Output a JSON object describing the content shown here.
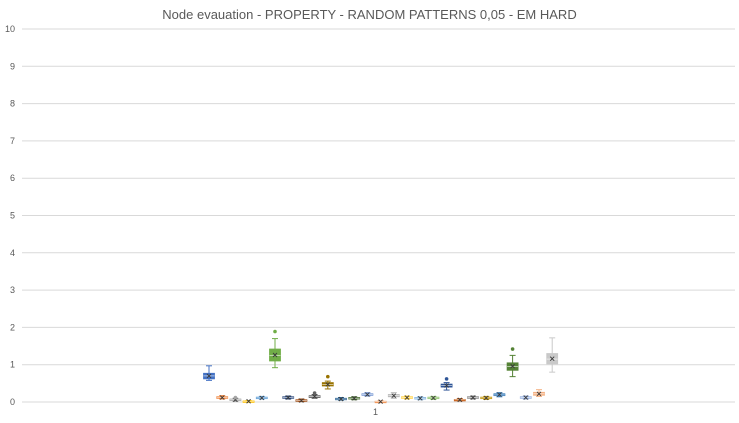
{
  "chart_data": {
    "type": "box",
    "title": "Node evauation - PROPERTY - RANDOM PATTERNS 0,05 - EM HARD",
    "xlabel": "",
    "ylabel": "",
    "categories": [
      "1"
    ],
    "ylim": [
      0,
      10
    ],
    "yticks": [
      "0",
      "1",
      "2",
      "3",
      "4",
      "5",
      "6",
      "7",
      "8",
      "9",
      "10"
    ],
    "grid": true,
    "legend": "none",
    "series": [
      {
        "color": "#4472c4",
        "min": 0.58,
        "q1": 0.62,
        "median": 0.7,
        "q3": 0.77,
        "max": 0.97,
        "mean": 0.7,
        "outliers": []
      },
      {
        "color": "#ed7d31",
        "min": 0.08,
        "q1": 0.1,
        "median": 0.12,
        "q3": 0.14,
        "max": 0.17,
        "mean": 0.12,
        "outliers": []
      },
      {
        "color": "#a5a5a5",
        "min": 0.02,
        "q1": 0.04,
        "median": 0.06,
        "q3": 0.08,
        "max": 0.1,
        "mean": 0.06,
        "outliers": [
          0.12
        ]
      },
      {
        "color": "#ffc000",
        "min": 0.0,
        "q1": 0.01,
        "median": 0.02,
        "q3": 0.03,
        "max": 0.04,
        "mean": 0.02,
        "outliers": []
      },
      {
        "color": "#5b9bd5",
        "min": 0.08,
        "q1": 0.1,
        "median": 0.11,
        "q3": 0.13,
        "max": 0.15,
        "mean": 0.11,
        "outliers": []
      },
      {
        "color": "#70ad47",
        "min": 0.92,
        "q1": 1.1,
        "median": 1.25,
        "q3": 1.42,
        "max": 1.7,
        "mean": 1.26,
        "outliers": [
          1.89
        ]
      },
      {
        "color": "#264478",
        "min": 0.08,
        "q1": 0.1,
        "median": 0.12,
        "q3": 0.14,
        "max": 0.16,
        "mean": 0.12,
        "outliers": []
      },
      {
        "color": "#9e480e",
        "min": 0.01,
        "q1": 0.03,
        "median": 0.04,
        "q3": 0.06,
        "max": 0.08,
        "mean": 0.04,
        "outliers": []
      },
      {
        "color": "#636363",
        "min": 0.1,
        "q1": 0.12,
        "median": 0.15,
        "q3": 0.17,
        "max": 0.2,
        "mean": 0.15,
        "outliers": [
          0.24
        ]
      },
      {
        "color": "#997300",
        "min": 0.35,
        "q1": 0.43,
        "median": 0.47,
        "q3": 0.52,
        "max": 0.56,
        "mean": 0.47,
        "outliers": [
          0.68
        ]
      },
      {
        "color": "#255e91",
        "min": 0.05,
        "q1": 0.07,
        "median": 0.08,
        "q3": 0.1,
        "max": 0.12,
        "mean": 0.08,
        "outliers": []
      },
      {
        "color": "#43682b",
        "min": 0.06,
        "q1": 0.08,
        "median": 0.1,
        "q3": 0.12,
        "max": 0.14,
        "mean": 0.1,
        "outliers": []
      },
      {
        "color": "#698ed0",
        "min": 0.16,
        "q1": 0.18,
        "median": 0.2,
        "q3": 0.22,
        "max": 0.25,
        "mean": 0.2,
        "outliers": []
      },
      {
        "color": "#f1975a",
        "min": 0.0,
        "q1": 0.01,
        "median": 0.01,
        "q3": 0.02,
        "max": 0.03,
        "mean": 0.01,
        "outliers": []
      },
      {
        "color": "#b7b7b7",
        "min": 0.1,
        "q1": 0.14,
        "median": 0.17,
        "q3": 0.2,
        "max": 0.25,
        "mean": 0.17,
        "outliers": []
      },
      {
        "color": "#ffcd33",
        "min": 0.08,
        "q1": 0.1,
        "median": 0.12,
        "q3": 0.14,
        "max": 0.16,
        "mean": 0.12,
        "outliers": []
      },
      {
        "color": "#7cafdd",
        "min": 0.06,
        "q1": 0.08,
        "median": 0.1,
        "q3": 0.12,
        "max": 0.14,
        "mean": 0.1,
        "outliers": []
      },
      {
        "color": "#8cc168",
        "min": 0.07,
        "q1": 0.09,
        "median": 0.11,
        "q3": 0.13,
        "max": 0.15,
        "mean": 0.11,
        "outliers": []
      },
      {
        "color": "#2f5597",
        "min": 0.32,
        "q1": 0.4,
        "median": 0.44,
        "q3": 0.48,
        "max": 0.52,
        "mean": 0.44,
        "outliers": [
          0.62
        ]
      },
      {
        "color": "#c55a11",
        "min": 0.03,
        "q1": 0.05,
        "median": 0.06,
        "q3": 0.07,
        "max": 0.09,
        "mean": 0.06,
        "outliers": []
      },
      {
        "color": "#7f7f7f",
        "min": 0.08,
        "q1": 0.1,
        "median": 0.12,
        "q3": 0.14,
        "max": 0.16,
        "mean": 0.12,
        "outliers": []
      },
      {
        "color": "#bf9000",
        "min": 0.07,
        "q1": 0.09,
        "median": 0.11,
        "q3": 0.13,
        "max": 0.15,
        "mean": 0.11,
        "outliers": []
      },
      {
        "color": "#2e75b6",
        "min": 0.14,
        "q1": 0.17,
        "median": 0.19,
        "q3": 0.22,
        "max": 0.25,
        "mean": 0.2,
        "outliers": []
      },
      {
        "color": "#548235",
        "min": 0.68,
        "q1": 0.85,
        "median": 0.95,
        "q3": 1.05,
        "max": 1.25,
        "mean": 0.96,
        "outliers": [
          1.42
        ]
      },
      {
        "color": "#8faadc",
        "min": 0.08,
        "q1": 0.1,
        "median": 0.12,
        "q3": 0.14,
        "max": 0.16,
        "mean": 0.12,
        "outliers": []
      },
      {
        "color": "#f4b183",
        "min": 0.15,
        "q1": 0.18,
        "median": 0.22,
        "q3": 0.26,
        "max": 0.33,
        "mean": 0.22,
        "outliers": []
      },
      {
        "color": "#c9c9c9",
        "min": 0.8,
        "q1": 1.02,
        "median": 1.15,
        "q3": 1.3,
        "max": 1.72,
        "mean": 1.16,
        "outliers": []
      }
    ]
  }
}
